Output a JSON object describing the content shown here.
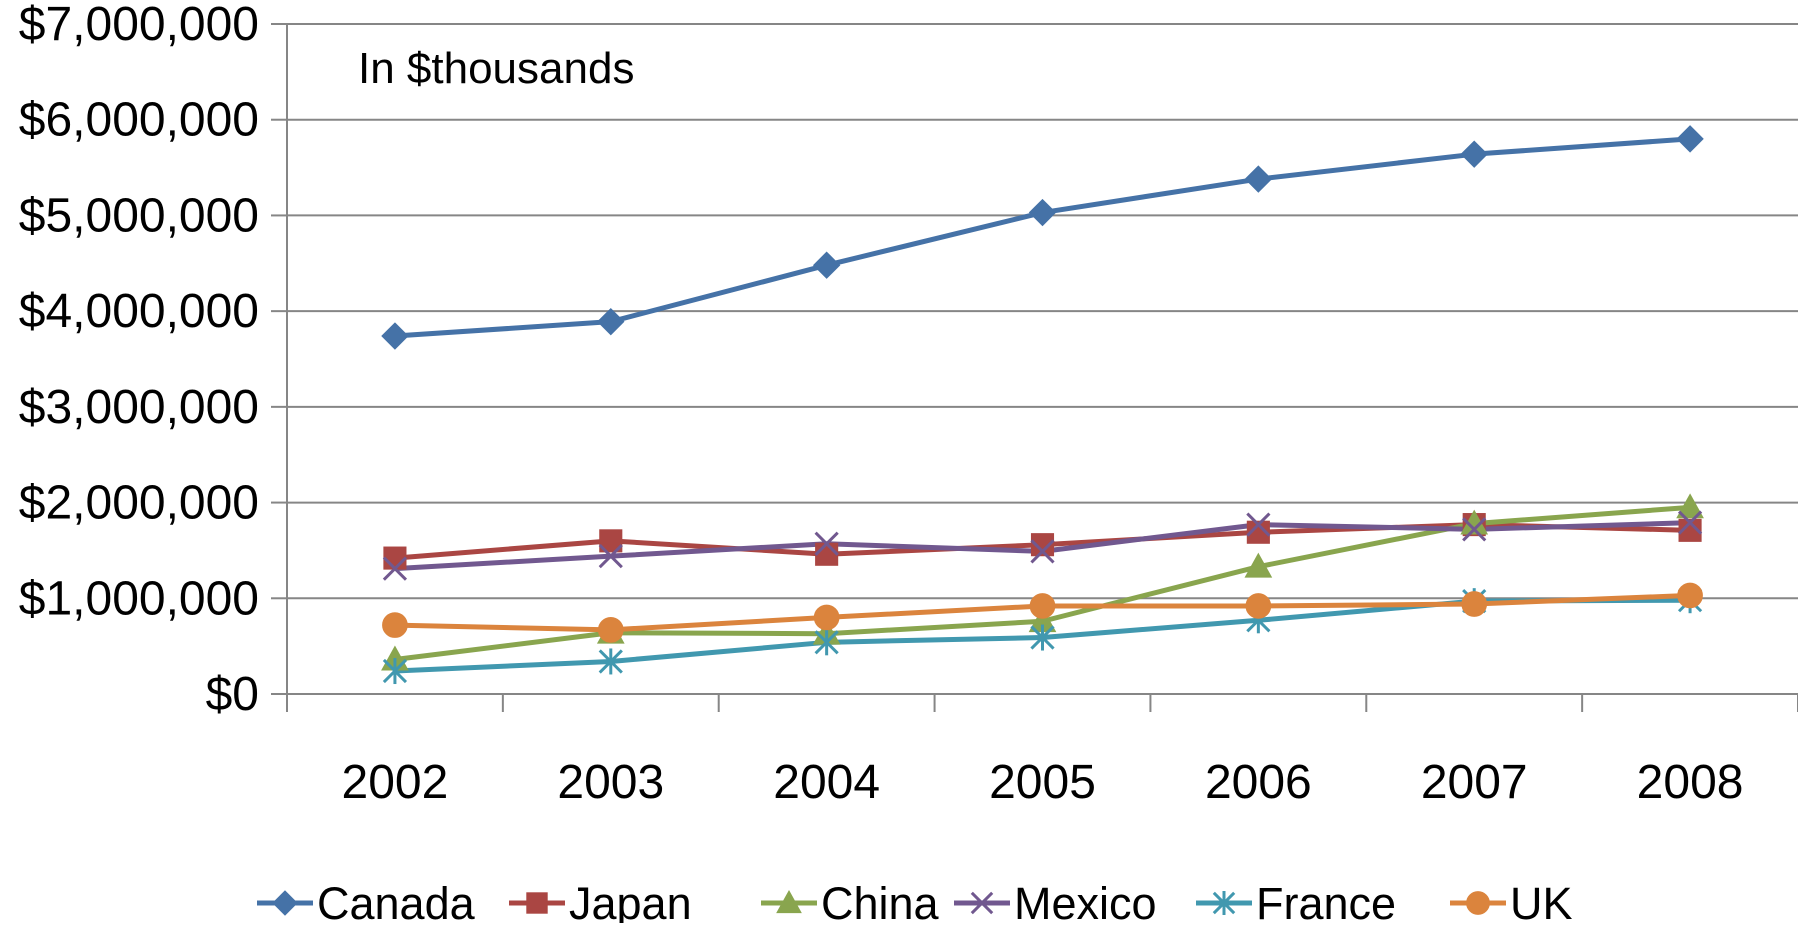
{
  "chart_data": {
    "type": "line",
    "annotation": "In $thousands",
    "categories": [
      "2002",
      "2003",
      "2004",
      "2005",
      "2006",
      "2007",
      "2008"
    ],
    "ylim": [
      0,
      7000000
    ],
    "yticks": [
      0,
      1000000,
      2000000,
      3000000,
      4000000,
      5000000,
      6000000,
      7000000
    ],
    "ytick_labels": [
      "$0",
      "$1,000,000",
      "$2,000,000",
      "$3,000,000",
      "$4,000,000",
      "$5,000,000",
      "$6,000,000",
      "$7,000,000"
    ],
    "grid": true,
    "legend_position": "bottom",
    "series": [
      {
        "name": "Canada",
        "color": "#4572A7",
        "marker": "diamond",
        "values": [
          3740000,
          3890000,
          4480000,
          5030000,
          5380000,
          5640000,
          5800000
        ]
      },
      {
        "name": "Japan",
        "color": "#AA4643",
        "marker": "square",
        "values": [
          1420000,
          1600000,
          1460000,
          1560000,
          1690000,
          1770000,
          1710000
        ]
      },
      {
        "name": "China",
        "color": "#89A54E",
        "marker": "triangle",
        "values": [
          360000,
          640000,
          630000,
          760000,
          1330000,
          1780000,
          1950000
        ]
      },
      {
        "name": "Mexico",
        "color": "#71588F",
        "marker": "x",
        "values": [
          1310000,
          1440000,
          1570000,
          1490000,
          1770000,
          1720000,
          1790000
        ]
      },
      {
        "name": "France",
        "color": "#4198AF",
        "marker": "star",
        "values": [
          240000,
          340000,
          540000,
          590000,
          770000,
          970000,
          980000
        ]
      },
      {
        "name": "UK",
        "color": "#DB843D",
        "marker": "circle",
        "values": [
          720000,
          670000,
          800000,
          920000,
          920000,
          940000,
          1030000
        ]
      }
    ]
  }
}
